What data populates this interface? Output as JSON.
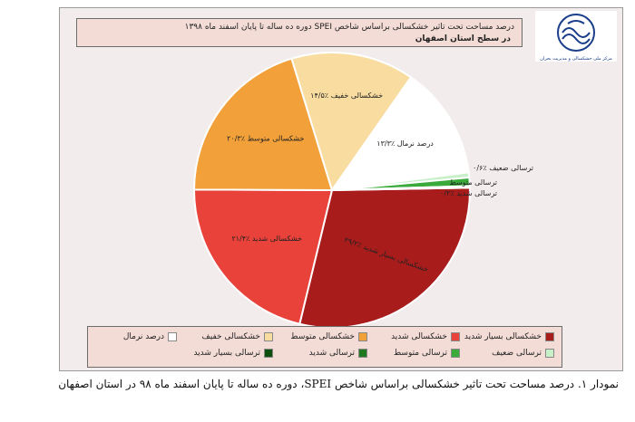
{
  "figure": {
    "caption": "نمودار ۱. درصد مساحت تحت تاثیر خشکسالی براساس شاخص SPEI، دوره ده ساله تا پایان اسفند ماه ۹۸ در استان اصفهان"
  },
  "logo": {
    "caption": "مرکز ملی خشکسالی و مدیریت بحران"
  },
  "chart_data": {
    "type": "pie",
    "title": "درصد مساحت تحت تاثیر خشکسالی براساس شاخص SPEI دوره ده ساله تا پایان اسفند ماه ۱۳۹۸",
    "subtitle": "در سطح استان اصفهان",
    "slices": [
      {
        "label": "خشکسالی بسیار شدید",
        "value": 29.2,
        "value_label": "خشکسالی بسیار شدید ٪۲۹/۲",
        "color": "#a81c1c"
      },
      {
        "label": "خشکسالی شدید",
        "value": 21.4,
        "value_label": "خشکسالی شدید ٪۲۱/۴",
        "color": "#e8423a"
      },
      {
        "label": "خشکسالی متوسط",
        "value": 20.3,
        "value_label": "خشکسالی متوسط ٪۲۰/۳",
        "color": "#f2a03a"
      },
      {
        "label": "خشکسالی خفیف",
        "value": 14.5,
        "value_label": "خشکسالی خفیف ٪۱۴/۵",
        "color": "#f8dca0"
      },
      {
        "label": "درصد نرمال",
        "value": 13.3,
        "value_label": "درصد نرمال ٪۱۳/۳",
        "color": "#ffffff"
      },
      {
        "label": "ترسالی ضعیف",
        "value": 0.6,
        "value_label": "ترسالی ضعیف ٪۰/۶",
        "color": "#c8f0c8"
      },
      {
        "label": "ترسالی متوسط",
        "value": 1.0,
        "value_label": "ترسالی متوسط",
        "color": "#3aaa3a"
      },
      {
        "label": "ترسالی شدید",
        "value": 0.2,
        "value_label": "ترسالی شدید ٪۰/۲",
        "color": "#1f7a1f"
      },
      {
        "label": "ترسالی بسیار شدید",
        "value": 0.0,
        "value_label": "",
        "color": "#0e4f0e"
      }
    ],
    "legend": [
      {
        "label": "خشکسالی بسیار شدید",
        "color": "#a81c1c"
      },
      {
        "label": "خشکسالی شدید",
        "color": "#e8423a"
      },
      {
        "label": "خشکسالی متوسط",
        "color": "#f2a03a"
      },
      {
        "label": "خشکسالی خفیف",
        "color": "#f8dca0"
      },
      {
        "label": "درصد نرمال",
        "color": "#ffffff"
      },
      {
        "label": "ترسالی ضعیف",
        "color": "#c8f0c8"
      },
      {
        "label": "ترسالی متوسط",
        "color": "#3aaa3a"
      },
      {
        "label": "ترسالی شدید",
        "color": "#1f7a1f"
      },
      {
        "label": "ترسالی بسیار شدید",
        "color": "#0e4f0e"
      }
    ],
    "legend_position": "bottom"
  }
}
